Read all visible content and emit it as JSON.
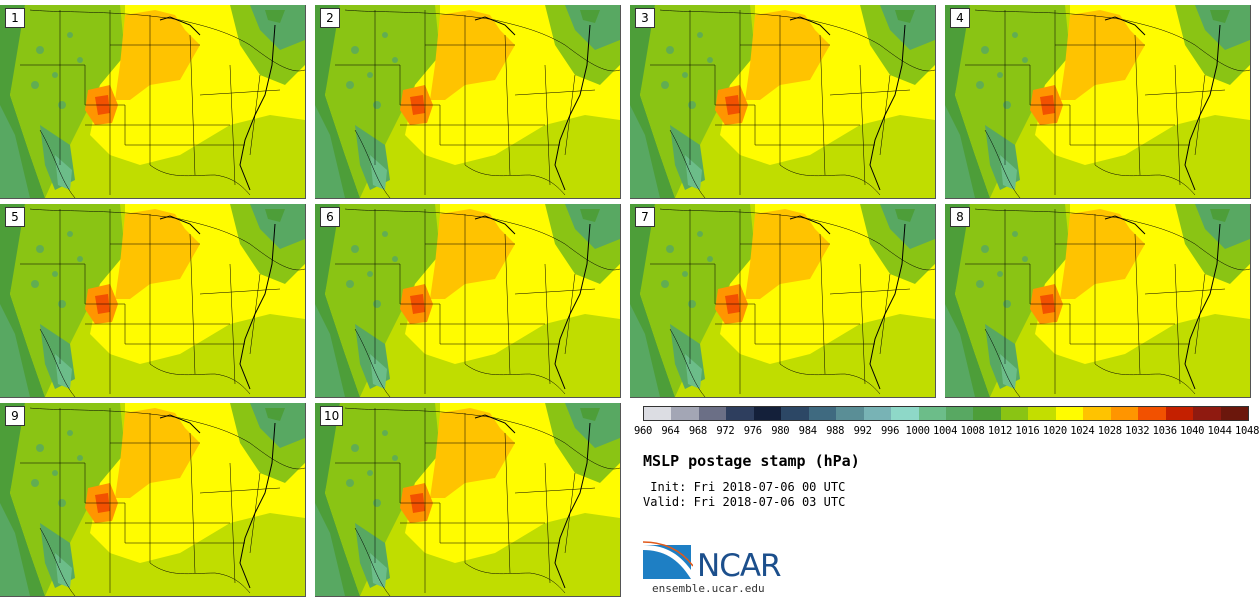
{
  "members": [
    "1",
    "2",
    "3",
    "4",
    "5",
    "6",
    "7",
    "8",
    "9",
    "10"
  ],
  "colorbar": {
    "colors": [
      "#dcdde3",
      "#a3a6b5",
      "#6b6f86",
      "#2e3e5e",
      "#14203a",
      "#2c4765",
      "#3f6a80",
      "#5a8e96",
      "#78b3b5",
      "#8ed8c8",
      "#6cbd89",
      "#58a862",
      "#4d9e39",
      "#8ac414",
      "#c3de00",
      "#fffc00",
      "#ffc300",
      "#ff9500",
      "#f25100",
      "#c42000",
      "#8f1a10",
      "#6b170c"
    ],
    "ticks": [
      "960",
      "964",
      "968",
      "972",
      "976",
      "980",
      "984",
      "988",
      "992",
      "996",
      "1000",
      "1004",
      "1008",
      "1012",
      "1016",
      "1020",
      "1024",
      "1028",
      "1032",
      "1036",
      "1040",
      "1044",
      "1048"
    ]
  },
  "title": "MSLP postage stamp (hPa)",
  "init": " Init: Fri 2018-07-06 00 UTC",
  "valid": "Valid: Fri 2018-07-06 03 UTC",
  "org": "NCAR",
  "url": "ensemble.ucar.edu"
}
